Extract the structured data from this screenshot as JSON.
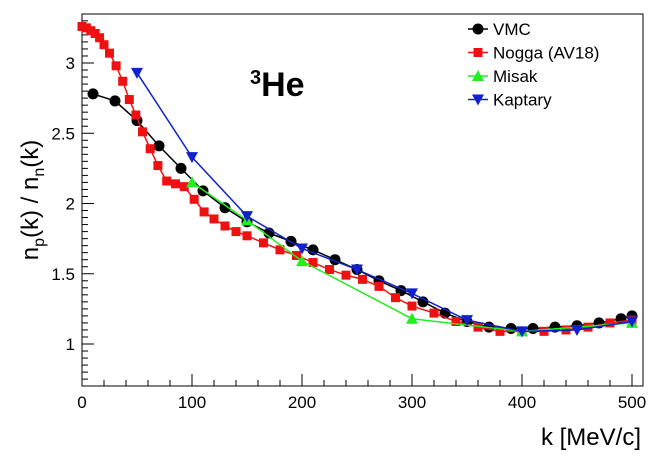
{
  "chart_data": {
    "type": "line",
    "title": "",
    "annotation": {
      "superscript": "3",
      "text": "He"
    },
    "xlabel": "k [MeV/c]",
    "ylabel": {
      "n_main": "n",
      "p_sub": "p",
      "mid": "(k) / n",
      "n_sub": "n",
      "end": "(k)"
    },
    "xlim": [
      0,
      505
    ],
    "ylim": [
      0.72,
      3.35
    ],
    "xticks": [
      0,
      100,
      200,
      300,
      400,
      500
    ],
    "xtick_labels": [
      "0",
      "100",
      "200",
      "300",
      "400",
      "500"
    ],
    "yticks": [
      1,
      1.5,
      2,
      2.5,
      3
    ],
    "ytick_labels": [
      "1",
      "1.5",
      "2",
      "2.5",
      "3"
    ],
    "legend_position": "top-right",
    "series": [
      {
        "name": "VMC",
        "color": "#000000",
        "marker": "circle",
        "x": [
          10,
          30,
          50,
          70,
          90,
          110,
          130,
          150,
          170,
          190,
          210,
          230,
          250,
          270,
          290,
          310,
          330,
          350,
          370,
          390,
          410,
          430,
          450,
          470,
          490,
          500
        ],
        "y": [
          2.78,
          2.73,
          2.59,
          2.41,
          2.25,
          2.09,
          1.97,
          1.87,
          1.79,
          1.73,
          1.67,
          1.6,
          1.53,
          1.45,
          1.38,
          1.3,
          1.22,
          1.16,
          1.12,
          1.11,
          1.11,
          1.12,
          1.13,
          1.15,
          1.18,
          1.2
        ]
      },
      {
        "name": "Nogga (AV18)",
        "color": "#ee1111",
        "marker": "square",
        "x": [
          0,
          4,
          8,
          12,
          16,
          20,
          25,
          31,
          37,
          43,
          49,
          55,
          62,
          69,
          77,
          85,
          93,
          102,
          111,
          120,
          130,
          140,
          150,
          165,
          180,
          195,
          210,
          225,
          240,
          255,
          270,
          285,
          300,
          320,
          340,
          360,
          380,
          400,
          420,
          440,
          460,
          480,
          500
        ],
        "y": [
          3.26,
          3.25,
          3.23,
          3.21,
          3.18,
          3.13,
          3.07,
          2.98,
          2.87,
          2.74,
          2.63,
          2.51,
          2.39,
          2.27,
          2.16,
          2.14,
          2.12,
          2.03,
          1.94,
          1.89,
          1.84,
          1.8,
          1.77,
          1.72,
          1.67,
          1.63,
          1.58,
          1.53,
          1.49,
          1.46,
          1.41,
          1.33,
          1.27,
          1.22,
          1.16,
          1.12,
          1.09,
          1.09,
          1.09,
          1.1,
          1.12,
          1.15,
          1.17
        ]
      },
      {
        "name": "Misak",
        "color": "#22ee22",
        "marker": "triangle-up",
        "x": [
          100,
          150,
          200,
          300,
          400,
          500
        ],
        "y": [
          2.15,
          1.88,
          1.59,
          1.18,
          1.09,
          1.15
        ]
      },
      {
        "name": "Kaptary",
        "color": "#1122cc",
        "marker": "triangle-down",
        "x": [
          50,
          100,
          150,
          200,
          250,
          300,
          350,
          400,
          450,
          500
        ],
        "y": [
          2.93,
          2.33,
          1.91,
          1.68,
          1.53,
          1.36,
          1.17,
          1.09,
          1.1,
          1.16
        ]
      }
    ]
  }
}
